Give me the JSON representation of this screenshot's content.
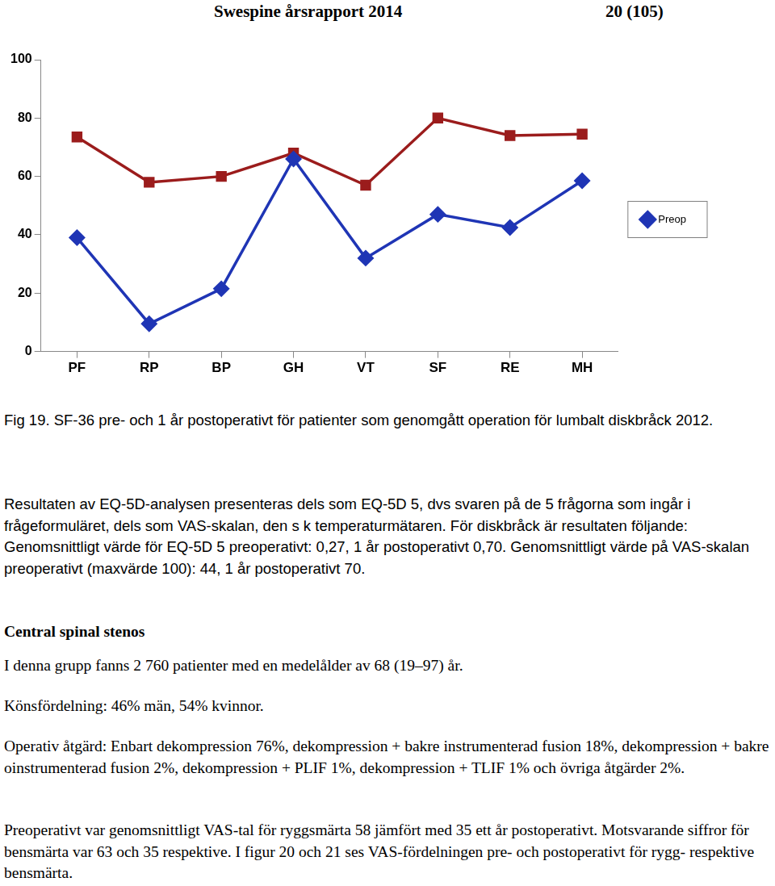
{
  "header": {
    "title": "Swespine årsrapport 2014",
    "page": "20 (105)"
  },
  "chart_data": {
    "type": "line",
    "categories": [
      "PF",
      "RP",
      "BP",
      "GH",
      "VT",
      "SF",
      "RE",
      "MH"
    ],
    "series": [
      {
        "name": "Preop",
        "color": "#1f35b5",
        "marker": "diamond",
        "values": [
          39,
          9.5,
          21.5,
          66,
          32,
          47,
          42.5,
          58.5
        ]
      },
      {
        "color": "#9b1c1c",
        "marker": "square",
        "values": [
          73.5,
          58,
          60,
          68,
          57,
          80,
          74,
          74.5
        ]
      }
    ],
    "ylim": [
      0,
      100
    ],
    "yticks": [
      0,
      20,
      40,
      60,
      80,
      100
    ],
    "grid": false,
    "legend": "right"
  },
  "caption": "Fig 19. SF-36 pre- och 1 år postoperativt för patienter som genomgått operation för lumbalt diskbråck 2012.",
  "eq5d_text": "Resultaten av EQ-5D-analysen presenteras dels som EQ-5D 5, dvs svaren på de 5 frågorna som ingår i frågeformuläret, dels som VAS-skalan, den s k temperaturmätaren. För diskbråck är resultaten följande: Genomsnittligt värde för EQ-5D 5 preoperativt: 0,27, 1 år postoperativt 0,70. Genomsnittligt värde på VAS-skalan preoperativt (maxvärde 100): 44, 1 år postoperativt 70.",
  "section": {
    "heading": "Central spinal stenos",
    "paragraphs": [
      "I denna grupp fanns 2 760 patienter med en medelålder av 68 (19–97) år.",
      "Könsfördelning: 46% män, 54% kvinnor.",
      "Operativ åtgärd: Enbart dekompression 76%, dekompression + bakre instrumenterad fusion 18%, dekompression + bakre oinstrumenterad fusion 2%, dekompression + PLIF 1%, dekompression + TLIF 1% och övriga åtgärder 2%.",
      "Preoperativt var genomsnittligt VAS-tal för ryggsmärta 58 jämfört med 35 ett år postoperativt. Motsvarande siffror för bensmärta var 63 och 35 respektive. I figur 20 och 21 ses VAS-fördelningen pre- och postoperativt för rygg- respektive bensmärta."
    ]
  }
}
